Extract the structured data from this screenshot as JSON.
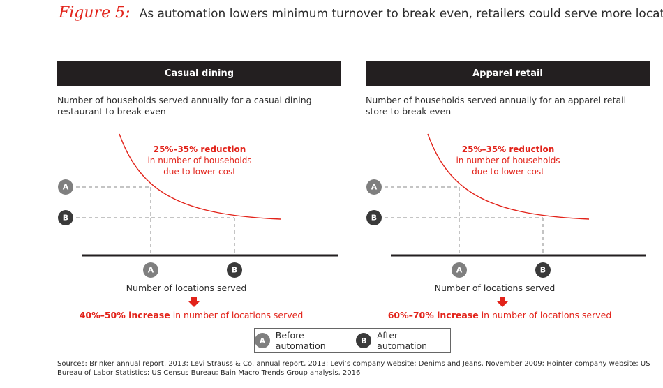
{
  "figure": {
    "label": "Figure 5:",
    "title": "As automation lowers minimum turnover to break even, retailers could serve more locations"
  },
  "colors": {
    "accent": "#e2231a",
    "header_bg": "#231f20",
    "badge_a": "#7f7f7f",
    "badge_b": "#3a3a3a",
    "guide": "#8a8a8a"
  },
  "chart_data": [
    {
      "type": "line",
      "panel": "left",
      "title": "Casual dining",
      "subtitle": "Number of households served annually for a casual dining restaurant to break even",
      "xlabel": "Number of locations served",
      "ylabel": "",
      "points": [
        {
          "id": "A",
          "label": "Before automation",
          "x": "A",
          "y": "A"
        },
        {
          "id": "B",
          "label": "After automation",
          "x": "B",
          "y": "B"
        }
      ],
      "annotation": {
        "bold": "25%–35% reduction",
        "lines": [
          "in number of households",
          "due to lower cost"
        ]
      },
      "conclusion": {
        "bold": "40%–50% increase",
        "rest": " in number of locations served"
      }
    },
    {
      "type": "line",
      "panel": "right",
      "title": "Apparel retail",
      "subtitle": "Number of households served annually for an apparel retail store to break even",
      "xlabel": "Number of locations served",
      "ylabel": "",
      "points": [
        {
          "id": "A",
          "label": "Before automation",
          "x": "A",
          "y": "A"
        },
        {
          "id": "B",
          "label": "After automation",
          "x": "B",
          "y": "B"
        }
      ],
      "annotation": {
        "bold": "25%–35% reduction",
        "lines": [
          "in number of households",
          "due to lower cost"
        ]
      },
      "conclusion": {
        "bold": "60%–70% increase",
        "rest": " in number of locations served"
      }
    }
  ],
  "legend": [
    {
      "id": "A",
      "label": "Before automation"
    },
    {
      "id": "B",
      "label": "After automation"
    }
  ],
  "sources": "Sources: Brinker annual report, 2013; Levi Strauss & Co. annual report, 2013; Levi’s company website; Denims and Jeans, November 2009; Hointer company website; US Bureau of Labor Statistics; US Census Bureau; Bain Macro Trends Group analysis, 2016"
}
